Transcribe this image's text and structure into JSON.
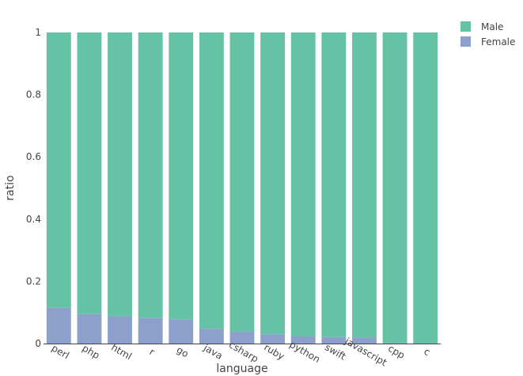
{
  "chart_data": {
    "type": "bar",
    "stacked": true,
    "categories": [
      "perl",
      "php",
      "html",
      "r",
      "go",
      "java",
      "csharp",
      "ruby",
      "python",
      "swift",
      "javascript",
      "cpp",
      "c"
    ],
    "series": [
      {
        "name": "Female",
        "color": "#8da0cb",
        "values": [
          0.115,
          0.095,
          0.088,
          0.082,
          0.078,
          0.048,
          0.038,
          0.03,
          0.023,
          0.021,
          0.02,
          0.002,
          0.001
        ]
      },
      {
        "name": "Male",
        "color": "#66c2a5",
        "values": [
          0.885,
          0.905,
          0.912,
          0.918,
          0.922,
          0.952,
          0.962,
          0.97,
          0.977,
          0.979,
          0.98,
          0.998,
          0.999
        ]
      }
    ],
    "legend_order": [
      "Male",
      "Female"
    ],
    "xlabel": "language",
    "ylabel": "ratio",
    "ylim": [
      0,
      1
    ],
    "yticks": [
      0,
      0.2,
      0.4,
      0.6,
      0.8,
      1
    ],
    "ytick_labels": [
      "0",
      "0.2",
      "0.4",
      "0.6",
      "0.8",
      "1"
    ],
    "legend_position": "top-right",
    "grid": false
  }
}
